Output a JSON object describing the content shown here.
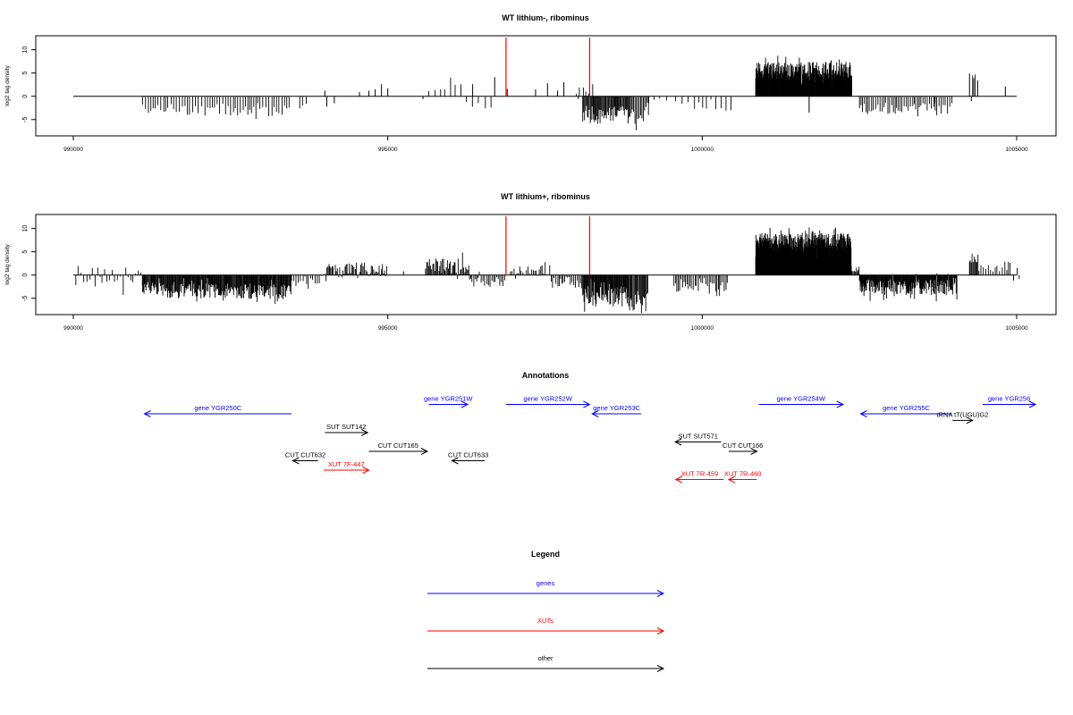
{
  "chart_data": [
    {
      "type": "bar",
      "title": "WT lithium-, ribominus",
      "xlabel": "",
      "ylabel": "log2 tag density",
      "xlim": [
        990000,
        1005000
      ],
      "ylim": [
        -8.5,
        13
      ],
      "xticks": [
        990000,
        995000,
        1000000,
        1005000
      ],
      "yticks": [
        10,
        5,
        0,
        -5
      ],
      "baseline": {
        "from": 990000,
        "to": 1005000
      },
      "markers": [
        {
          "x": 996880,
          "color": "#ff0000"
        },
        {
          "x": 998210,
          "color": "#ff0000"
        }
      ],
      "segments": [
        {
          "start": 991100,
          "end": 991500,
          "step": 40,
          "base": -2.6,
          "amp": 1.1
        },
        {
          "start": 991500,
          "end": 992500,
          "step": 45,
          "base": -2.8,
          "amp": 1.2
        },
        {
          "start": 992500,
          "end": 993470,
          "step": 40,
          "base": -3.0,
          "amp": 1.3
        },
        {
          "start": 993600,
          "end": 993750,
          "step": 50,
          "base": -2.0,
          "amp": 0.8
        },
        {
          "start": 995650,
          "end": 996200,
          "step": 80,
          "base": 2.6,
          "amp": 1.4
        },
        {
          "start": 996250,
          "end": 996650,
          "step": 90,
          "base": -2.2,
          "amp": 1.0
        },
        {
          "start": 998000,
          "end": 998300,
          "step": 50,
          "base": 1.3,
          "amp": 0.8
        },
        {
          "start": 998100,
          "end": 998850,
          "step": 14,
          "base": -4.0,
          "amp": 2.0
        },
        {
          "start": 998850,
          "end": 999150,
          "step": 20,
          "base": -4.8,
          "amp": 2.0
        },
        {
          "start": 999150,
          "end": 999600,
          "step": 90,
          "base": -1.0,
          "amp": 0.6
        },
        {
          "start": 999680,
          "end": 1000500,
          "step": 80,
          "base": -2.1,
          "amp": 1.0
        },
        {
          "start": 1000850,
          "end": 1002380,
          "step": 7,
          "base": 5.6,
          "amp": 1.8
        },
        {
          "start": 1002500,
          "end": 1004000,
          "step": 30,
          "base": -2.6,
          "amp": 1.2
        },
        {
          "start": 1004300,
          "end": 1004360,
          "step": 20,
          "base": 3.8,
          "amp": 1.0
        }
      ],
      "spikes": [
        {
          "x": 994000,
          "v": 1.2
        },
        {
          "x": 994030,
          "v": -2.2
        },
        {
          "x": 994150,
          "v": -1.5
        },
        {
          "x": 994550,
          "v": 0.9
        },
        {
          "x": 994700,
          "v": 1.2
        },
        {
          "x": 994800,
          "v": 1.5
        },
        {
          "x": 994900,
          "v": 2.6
        },
        {
          "x": 995000,
          "v": 1.7
        },
        {
          "x": 995560,
          "v": -0.6
        },
        {
          "x": 996350,
          "v": 2.6
        },
        {
          "x": 996700,
          "v": 4.1
        },
        {
          "x": 996900,
          "v": 1.6
        },
        {
          "x": 997350,
          "v": 1.5
        },
        {
          "x": 997540,
          "v": 2.8
        },
        {
          "x": 997700,
          "v": 1.2
        },
        {
          "x": 997800,
          "v": 3.0
        },
        {
          "x": 998030,
          "v": -0.6
        },
        {
          "x": 1001300,
          "v": 2.2
        },
        {
          "x": 1001550,
          "v": 1.0
        },
        {
          "x": 1001700,
          "v": -3.5
        },
        {
          "x": 1001900,
          "v": 2.0
        },
        {
          "x": 1003700,
          "v": -1.5
        },
        {
          "x": 1004250,
          "v": 4.9
        },
        {
          "x": 1004280,
          "v": -1.0
        },
        {
          "x": 1004380,
          "v": 3.4
        },
        {
          "x": 1004820,
          "v": 2.1
        }
      ]
    },
    {
      "type": "bar",
      "title": "WT lithium+, ribominus",
      "xlabel": "",
      "ylabel": "log2 tag density",
      "xlim": [
        990000,
        1005000
      ],
      "ylim": [
        -8.5,
        13
      ],
      "xticks": [
        990000,
        995000,
        1000000,
        1005000
      ],
      "yticks": [
        10,
        5,
        0,
        -5
      ],
      "baseline": {
        "from": 990000,
        "to": 1005000
      },
      "markers": [
        {
          "x": 996880,
          "color": "#ff0000"
        },
        {
          "x": 998210,
          "color": "#ff0000"
        }
      ],
      "segments": [
        {
          "start": 990040,
          "end": 991100,
          "step": 40,
          "base": -0.4,
          "amp": 2.4
        },
        {
          "start": 991100,
          "end": 991500,
          "step": 12,
          "base": -3.0,
          "amp": 1.4
        },
        {
          "start": 991500,
          "end": 992500,
          "step": 11,
          "base": -3.4,
          "amp": 1.6
        },
        {
          "start": 992500,
          "end": 993470,
          "step": 11,
          "base": -3.6,
          "amp": 1.6
        },
        {
          "start": 993470,
          "end": 994000,
          "step": 35,
          "base": -1.2,
          "amp": 1.2
        },
        {
          "start": 994000,
          "end": 995000,
          "step": 18,
          "base": 1.0,
          "amp": 1.5
        },
        {
          "start": 995600,
          "end": 996300,
          "step": 16,
          "base": 2.0,
          "amp": 1.6
        },
        {
          "start": 996300,
          "end": 996880,
          "step": 25,
          "base": -1.4,
          "amp": 1.4
        },
        {
          "start": 996950,
          "end": 997600,
          "step": 28,
          "base": 1.0,
          "amp": 1.2
        },
        {
          "start": 997600,
          "end": 998100,
          "step": 25,
          "base": -1.6,
          "amp": 1.4
        },
        {
          "start": 998100,
          "end": 998830,
          "step": 10,
          "base": -4.6,
          "amp": 2.2
        },
        {
          "start": 998830,
          "end": 999150,
          "step": 14,
          "base": -5.5,
          "amp": 2.4
        },
        {
          "start": 999550,
          "end": 1000400,
          "step": 25,
          "base": -2.4,
          "amp": 1.2
        },
        {
          "start": 1000850,
          "end": 1002370,
          "step": 5,
          "base": 7.0,
          "amp": 2.0
        },
        {
          "start": 1002370,
          "end": 1002500,
          "step": 15,
          "base": 1.5,
          "amp": 0.8
        },
        {
          "start": 1002500,
          "end": 1004050,
          "step": 9,
          "base": -2.6,
          "amp": 1.7
        },
        {
          "start": 1004250,
          "end": 1004400,
          "step": 15,
          "base": 3.6,
          "amp": 1.0
        },
        {
          "start": 1004400,
          "end": 1004900,
          "step": 35,
          "base": 1.5,
          "amp": 0.8
        }
      ],
      "spikes": [
        {
          "x": 1004950,
          "v": -1.2
        },
        {
          "x": 1005010,
          "v": 1.5
        },
        {
          "x": 1005040,
          "v": -0.8
        },
        {
          "x": 995250,
          "v": 0.8
        }
      ]
    }
  ],
  "annotations": {
    "title": "Annotations",
    "xlim": [
      990000,
      1005000
    ],
    "features": [
      {
        "label": "gene YGR250C",
        "start": 993470,
        "end": 991130,
        "dir": "left",
        "color": "#0000ff",
        "row": 2
      },
      {
        "label": "gene YGR251W",
        "start": 995650,
        "end": 996270,
        "dir": "right",
        "color": "#0000ff",
        "row": 1
      },
      {
        "label": "gene YGR252W",
        "start": 996880,
        "end": 998210,
        "dir": "right",
        "color": "#0000ff",
        "row": 1
      },
      {
        "label": "gene YGR253C",
        "start": 999030,
        "end": 998250,
        "dir": "left",
        "color": "#0000ff",
        "row": 2
      },
      {
        "label": "gene YGR254W",
        "start": 1000900,
        "end": 1002240,
        "dir": "right",
        "color": "#0000ff",
        "row": 1
      },
      {
        "label": "gene YGR255C",
        "start": 1003970,
        "end": 1002520,
        "dir": "left",
        "color": "#0000ff",
        "row": 2
      },
      {
        "label": "gene YGR256",
        "start": 1004460,
        "end": 1005300,
        "dir": "right",
        "color": "#0000ff",
        "row": 1
      },
      {
        "label": "tRNA tT(UGU)G2",
        "start": 1003980,
        "end": 1004300,
        "dir": "right",
        "color": "#000000",
        "row": 2.7
      },
      {
        "label": "SUT SUT142",
        "start": 994000,
        "end": 994680,
        "dir": "right",
        "color": "#000000",
        "row": 4
      },
      {
        "label": "SUT SUT571",
        "start": 1000300,
        "end": 999570,
        "dir": "left",
        "color": "#000000",
        "row": 5
      },
      {
        "label": "CUT CUT165",
        "start": 994700,
        "end": 995630,
        "dir": "right",
        "color": "#000000",
        "row": 6
      },
      {
        "label": "CUT CUT166",
        "start": 1000420,
        "end": 1000870,
        "dir": "right",
        "color": "#000000",
        "row": 6
      },
      {
        "label": "CUT CUT632",
        "start": 993890,
        "end": 993490,
        "dir": "left",
        "color": "#000000",
        "row": 7
      },
      {
        "label": "CUT CUT633",
        "start": 996540,
        "end": 996020,
        "dir": "left",
        "color": "#000000",
        "row": 7
      },
      {
        "label": "XUT 7F-447",
        "start": 993980,
        "end": 994700,
        "dir": "right",
        "color": "#ff0000",
        "row": 8
      },
      {
        "label": "XUT 7R-459",
        "start": 1000340,
        "end": 999580,
        "dir": "left",
        "color": "#ff0000",
        "row": 9
      },
      {
        "label": "XUT 7R-460",
        "start": 1000870,
        "end": 1000420,
        "dir": "left",
        "color": "#ff0000",
        "row": 9
      }
    ]
  },
  "legend": {
    "title": "Legend",
    "items": [
      {
        "label": "genes",
        "color": "#0000ff"
      },
      {
        "label": "XUTs",
        "color": "#ff0000"
      },
      {
        "label": "other",
        "color": "#000000"
      }
    ]
  }
}
